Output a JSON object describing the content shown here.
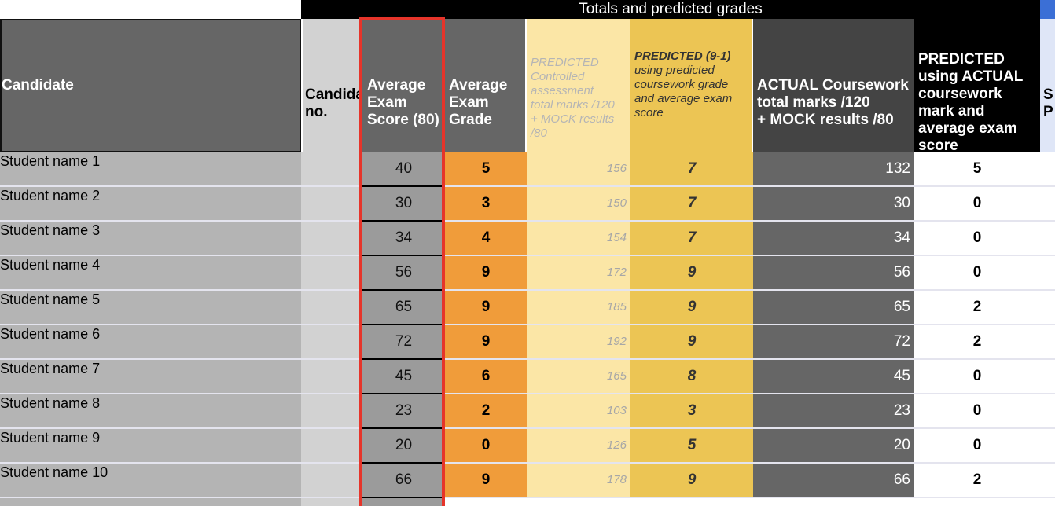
{
  "banner": {
    "title": "Totals and predicted grades"
  },
  "headers": {
    "candidate": "Candidate",
    "candidate_no": "Candida\nno.",
    "avg_exam_score": "Average\nExam\nScore (80)",
    "avg_exam_grade": "Average\nExam\nGrade",
    "predicted_controlled": "PREDICTED\nControlled\nassessment\ntotal marks /120\n+ MOCK results\n/80",
    "predicted_91_title": "PREDICTED (9-1)",
    "predicted_91_sub": "using predicted\ncoursework grade\nand average exam\nscore",
    "actual_coursework": "ACTUAL Coursework\ntotal marks /120\n+ MOCK results /80",
    "predicted_actual": "PREDICTED\nusing ACTUAL\ncoursework\nmark and\naverage exam\nscore",
    "cut_col": "S\nP"
  },
  "rows": [
    {
      "name": "Student name 1",
      "avg_score": "40",
      "avg_grade": "5",
      "pred_total": "156",
      "pred_grade": "7",
      "actual_total": "132",
      "pred_actual": "5"
    },
    {
      "name": "Student name 2",
      "avg_score": "30",
      "avg_grade": "3",
      "pred_total": "150",
      "pred_grade": "7",
      "actual_total": "30",
      "pred_actual": "0"
    },
    {
      "name": "Student name 3",
      "avg_score": "34",
      "avg_grade": "4",
      "pred_total": "154",
      "pred_grade": "7",
      "actual_total": "34",
      "pred_actual": "0"
    },
    {
      "name": "Student name 4",
      "avg_score": "56",
      "avg_grade": "9",
      "pred_total": "172",
      "pred_grade": "9",
      "actual_total": "56",
      "pred_actual": "0"
    },
    {
      "name": "Student name 5",
      "avg_score": "65",
      "avg_grade": "9",
      "pred_total": "185",
      "pred_grade": "9",
      "actual_total": "65",
      "pred_actual": "2"
    },
    {
      "name": "Student name 6",
      "avg_score": "72",
      "avg_grade": "9",
      "pred_total": "192",
      "pred_grade": "9",
      "actual_total": "72",
      "pred_actual": "2"
    },
    {
      "name": "Student name 7",
      "avg_score": "45",
      "avg_grade": "6",
      "pred_total": "165",
      "pred_grade": "8",
      "actual_total": "45",
      "pred_actual": "0"
    },
    {
      "name": "Student name 8",
      "avg_score": "23",
      "avg_grade": "2",
      "pred_total": "103",
      "pred_grade": "3",
      "actual_total": "23",
      "pred_actual": "0"
    },
    {
      "name": "Student name 9",
      "avg_score": "20",
      "avg_grade": "0",
      "pred_total": "126",
      "pred_grade": "5",
      "actual_total": "20",
      "pred_actual": "0"
    },
    {
      "name": "Student name 10",
      "avg_score": "66",
      "avg_grade": "9",
      "pred_total": "178",
      "pred_grade": "9",
      "actual_total": "66",
      "pred_actual": "2"
    }
  ],
  "colors": {
    "name_bg": "#b4b4b4",
    "cand_no_bg": "#d2d2d2",
    "avg_score_bg": "#9b9b9b",
    "avg_grade_bg": "#f09c3a",
    "pred_total_bg": "#fbe6a6",
    "pred_grade_bg": "#ecc554",
    "actual_total_bg": "#666666",
    "pred_actual_bg": "#ffffff",
    "highlight_frame": "#e6342a"
  }
}
